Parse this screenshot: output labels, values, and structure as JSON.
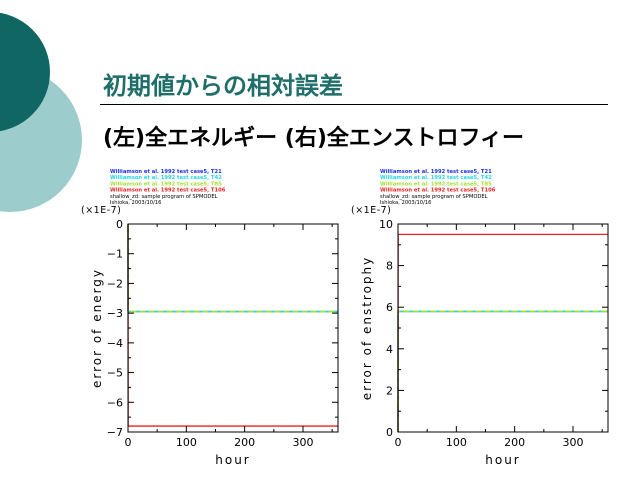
{
  "slide": {
    "title": "初期値からの相対誤差",
    "subtitle": "(左)全エネルギー (右)全エンストロフィー",
    "colors": {
      "title": "#1f6e6a",
      "circle_dark": "#0f6662",
      "circle_light": "#9dcccd"
    }
  },
  "legend": {
    "entries": [
      {
        "label": "Williamson et al. 1992 test case5, T21",
        "color": "#1a2ee8"
      },
      {
        "label": "Williamson et al. 1992 test case5, T42",
        "color": "#22d8e0"
      },
      {
        "label": "Williamson et al. 1992 test case5, T85",
        "color": "#a6e030"
      },
      {
        "label": "Williamson et al. 1992 test case5, T106",
        "color": "#ee2222"
      }
    ],
    "footer_lines": [
      "shallow_zd: sample program of SPMODEL",
      "Ishioka, 2003/10/16"
    ]
  },
  "chart_data": [
    {
      "type": "line",
      "title": "",
      "xlabel": "hour",
      "ylabel": "error of energy",
      "multiplier": "(×1E-7)",
      "xlim": [
        0,
        360
      ],
      "ylim": [
        -7,
        0
      ],
      "xticks": [
        0,
        100,
        200,
        300
      ],
      "yticks": [
        0,
        -1,
        -2,
        -3,
        -4,
        -5,
        -6,
        -7
      ],
      "ytick_labels": [
        "0",
        "−1",
        "−2",
        "−3",
        "−4",
        "−5",
        "−6",
        "−7"
      ],
      "series": [
        {
          "color": "#1a2ee8",
          "x": [
            0,
            0.3,
            360
          ],
          "y": [
            0,
            -2.95,
            -2.95
          ]
        },
        {
          "color": "#22d8e0",
          "x": [
            0,
            0.3,
            360
          ],
          "y": [
            0,
            -2.95,
            -2.95
          ]
        },
        {
          "color": "#a6e030",
          "x": [
            0,
            0.3,
            360
          ],
          "y": [
            0,
            -2.95,
            -2.95
          ]
        },
        {
          "color": "#ee2222",
          "x": [
            0,
            0.3,
            360
          ],
          "y": [
            0,
            -6.8,
            -6.8
          ]
        }
      ]
    },
    {
      "type": "line",
      "title": "",
      "xlabel": "hour",
      "ylabel": "error of enstrophy",
      "multiplier": "(×1E-7)",
      "xlim": [
        0,
        360
      ],
      "ylim": [
        0,
        10
      ],
      "xticks": [
        0,
        100,
        200,
        300
      ],
      "yticks": [
        0,
        2,
        4,
        6,
        8,
        10
      ],
      "ytick_labels": [
        "0",
        "2",
        "4",
        "6",
        "8",
        "10"
      ],
      "series": [
        {
          "color": "#1a2ee8",
          "x": [
            0,
            0.3,
            360
          ],
          "y": [
            0,
            5.8,
            5.8
          ]
        },
        {
          "color": "#22d8e0",
          "x": [
            0,
            0.3,
            360
          ],
          "y": [
            0,
            5.8,
            5.8
          ]
        },
        {
          "color": "#a6e030",
          "x": [
            0,
            0.3,
            360
          ],
          "y": [
            0,
            5.8,
            5.8
          ]
        },
        {
          "color": "#ee2222",
          "x": [
            0,
            0.3,
            360
          ],
          "y": [
            0,
            9.5,
            9.5
          ]
        }
      ]
    }
  ]
}
